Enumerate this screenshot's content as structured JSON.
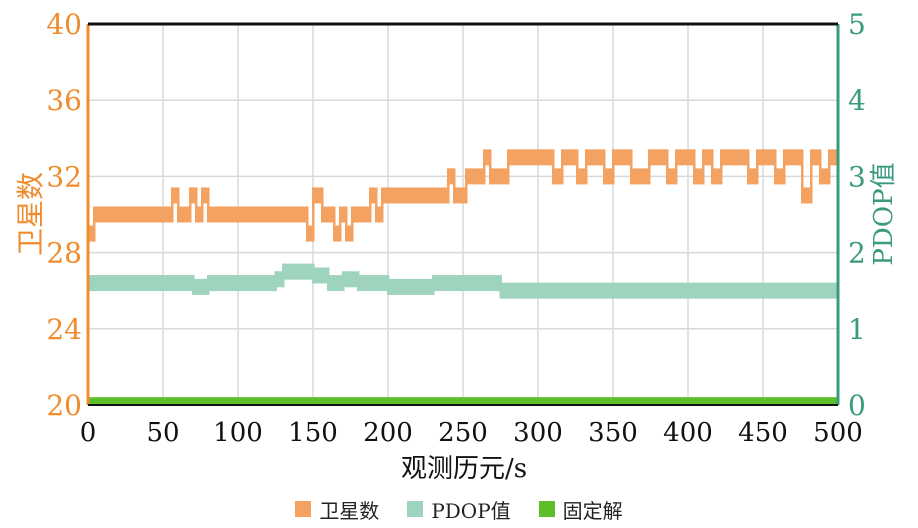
{
  "chart_data": {
    "type": "bar",
    "xlabel": "观测历元/s",
    "ylabel_left": "卫星数",
    "ylabel_right": "PDOP值",
    "xlim": [
      0,
      500
    ],
    "ylim_left": [
      20,
      40
    ],
    "ylim_right": [
      0,
      5
    ],
    "x_ticks": [
      "0",
      "50",
      "100",
      "150",
      "200",
      "250",
      "300",
      "350",
      "400",
      "450",
      "500"
    ],
    "y_left_ticks": [
      "20",
      "24",
      "28",
      "32",
      "36",
      "40"
    ],
    "y_right_ticks": [
      "0",
      "1",
      "2",
      "3",
      "4",
      "5"
    ],
    "grid": true,
    "legend_position": "bottom",
    "colors": {
      "satellites": "#f4a261",
      "pdop": "#9ed3bd",
      "fixed": "#5cbf2a",
      "left_axis": "#f08c2e",
      "right_axis": "#3a9a80",
      "grid": "#d9d9d9"
    },
    "series": [
      {
        "name": "卫星数",
        "axis": "left",
        "x": [
          0,
          4,
          40,
          44,
          48,
          52,
          56,
          60,
          64,
          68,
          72,
          76,
          80,
          84,
          90,
          100,
          110,
          120,
          124,
          130,
          140,
          146,
          150,
          156,
          160,
          164,
          168,
          172,
          176,
          180,
          184,
          188,
          192,
          196,
          200,
          204,
          210,
          220,
          230,
          236,
          240,
          244,
          248,
          252,
          256,
          260,
          264,
          268,
          272,
          276,
          280,
          284,
          290,
          300,
          310,
          316,
          320,
          326,
          332,
          338,
          344,
          350,
          356,
          362,
          368,
          374,
          380,
          386,
          392,
          398,
          404,
          410,
          416,
          422,
          428,
          434,
          440,
          446,
          452,
          458,
          464,
          470,
          476,
          482,
          488,
          494,
          500
        ],
        "values": [
          29,
          30,
          30,
          30,
          30,
          30,
          31,
          30,
          30,
          31,
          30,
          31,
          30,
          30,
          30,
          30,
          30,
          30,
          30,
          30,
          30,
          29,
          31,
          30,
          30,
          29,
          30,
          29,
          30,
          30,
          30,
          31,
          30,
          31,
          31,
          31,
          31,
          31,
          31,
          31,
          32,
          31,
          31,
          32,
          32,
          32,
          33,
          32,
          32,
          32,
          33,
          33,
          33,
          33,
          32,
          33,
          33,
          32,
          33,
          33,
          32,
          33,
          33,
          32,
          32,
          33,
          33,
          32,
          33,
          33,
          32,
          33,
          32,
          33,
          33,
          33,
          32,
          33,
          33,
          32,
          33,
          33,
          31,
          33,
          32,
          33,
          33
        ]
      },
      {
        "name": "PDOP值",
        "axis": "right",
        "x": [
          0,
          10,
          20,
          30,
          40,
          50,
          60,
          70,
          80,
          90,
          100,
          110,
          120,
          125,
          130,
          140,
          150,
          160,
          170,
          180,
          190,
          200,
          210,
          220,
          230,
          240,
          250,
          260,
          270,
          275,
          280,
          290,
          300,
          310,
          320,
          330,
          340,
          350,
          360,
          370,
          380,
          390,
          400,
          410,
          420,
          430,
          440,
          450,
          460,
          470,
          480,
          490,
          500
        ],
        "values": [
          1.6,
          1.6,
          1.6,
          1.6,
          1.6,
          1.6,
          1.6,
          1.55,
          1.6,
          1.6,
          1.6,
          1.6,
          1.6,
          1.65,
          1.75,
          1.75,
          1.7,
          1.6,
          1.65,
          1.6,
          1.6,
          1.55,
          1.55,
          1.55,
          1.6,
          1.6,
          1.6,
          1.6,
          1.6,
          1.5,
          1.5,
          1.5,
          1.5,
          1.5,
          1.5,
          1.5,
          1.5,
          1.5,
          1.5,
          1.5,
          1.5,
          1.5,
          1.5,
          1.5,
          1.5,
          1.5,
          1.5,
          1.5,
          1.5,
          1.5,
          1.5,
          1.5,
          1.55
        ]
      },
      {
        "name": "固定解",
        "axis": "left",
        "x": [
          0,
          500
        ],
        "values": [
          20.2,
          20.2
        ]
      }
    ]
  }
}
